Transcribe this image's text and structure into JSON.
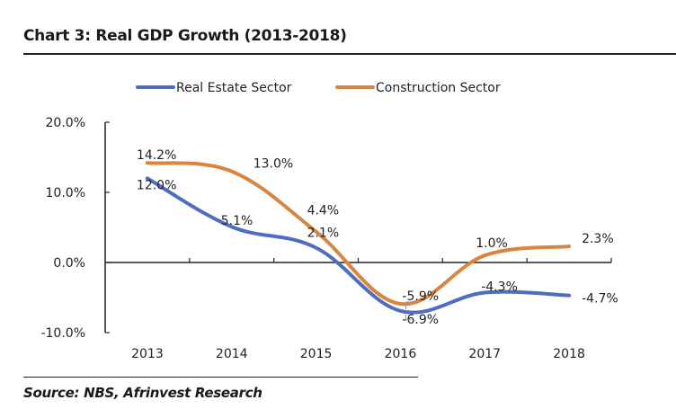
{
  "header": {
    "title": "Chart 3: Real  GDP Growth (2013-2018)"
  },
  "footer": {
    "source": "Source: NBS, Afrinvest Research"
  },
  "colors": {
    "real_estate": "#4f6cc0",
    "construction": "#d9843f"
  },
  "chart_data": {
    "type": "line",
    "title": "Chart 3: Real  GDP Growth (2013-2018)",
    "xlabel": "",
    "ylabel": "",
    "categories": [
      "2013",
      "2014",
      "2015",
      "2016",
      "2017",
      "2018"
    ],
    "ylim": [
      -10,
      20
    ],
    "yticks": [
      -10,
      0,
      10,
      20
    ],
    "ytick_labels": [
      "-10.0%",
      "0.0%",
      "10.0%",
      "20.0%"
    ],
    "grid": false,
    "smooth": true,
    "legend": {
      "position": "top-center"
    },
    "series": [
      {
        "name": "Real Estate Sector",
        "color": "#4f6cc0",
        "values": [
          12.0,
          5.1,
          2.1,
          -6.9,
          -4.3,
          -4.7
        ],
        "labels": [
          "12.0%",
          "5.1%",
          "2.1%",
          "-6.9%",
          "-4.3%",
          "-4.7%"
        ]
      },
      {
        "name": "Construction Sector",
        "color": "#d9843f",
        "values": [
          14.2,
          13.0,
          4.4,
          -5.9,
          1.0,
          2.3
        ],
        "labels": [
          "14.2%",
          "13.0%",
          "4.4%",
          "-5.9%",
          "1.0%",
          "2.3%"
        ]
      }
    ]
  }
}
